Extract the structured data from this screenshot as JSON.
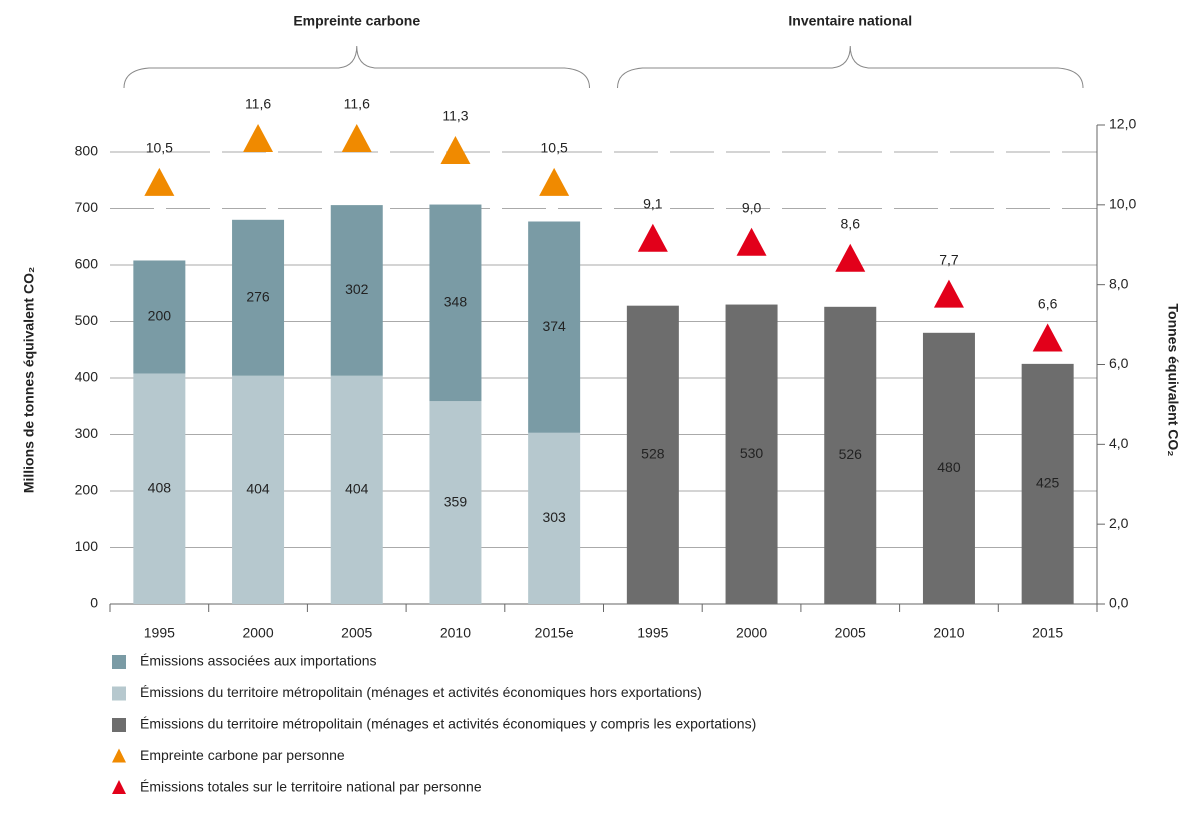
{
  "chart_data": {
    "type": "bar",
    "annotations": [
      "Empreinte carbone",
      "Inventaire national"
    ],
    "ylabel": "Millions de tonnes équivalent CO₂",
    "y2label": "Tonnes équivalent CO₂",
    "categories": [
      "1995",
      "2000",
      "2005",
      "2010",
      "2015e",
      "1995",
      "2000",
      "2005",
      "2010",
      "2015"
    ],
    "series": [
      {
        "name": "Émissions associées aux importations",
        "color": "#7a9ba5",
        "kind": "bar",
        "values": [
          200,
          276,
          302,
          348,
          374,
          null,
          null,
          null,
          null,
          null
        ]
      },
      {
        "name": "Émissions du territoire métropolitain (ménages et activités économiques hors exportations)",
        "color": "#b6c8ce",
        "kind": "bar",
        "values": [
          408,
          404,
          404,
          359,
          303,
          null,
          null,
          null,
          null,
          null
        ]
      },
      {
        "name": "Émissions du territoire métropolitain (ménages et activités économiques y compris les exportations)",
        "color": "#6d6d6d",
        "kind": "bar",
        "values": [
          null,
          null,
          null,
          null,
          null,
          528,
          530,
          526,
          480,
          425
        ]
      },
      {
        "name": "Empreinte carbone par personne",
        "color": "#f08a00",
        "kind": "triangle",
        "axis": "y2",
        "values": [
          10.5,
          11.6,
          11.6,
          11.3,
          10.5,
          null,
          null,
          null,
          null,
          null
        ],
        "value_labels": [
          "10,5",
          "11,6",
          "11,6",
          "11,3",
          "10,5",
          null,
          null,
          null,
          null,
          null
        ]
      },
      {
        "name": "Émissions totales sur le territoire national par personne",
        "color": "#e2001a",
        "kind": "triangle",
        "axis": "y2",
        "values": [
          null,
          null,
          null,
          null,
          null,
          9.1,
          9.0,
          8.6,
          7.7,
          6.6
        ],
        "value_labels": [
          null,
          null,
          null,
          null,
          null,
          "9,1",
          "9,0",
          "8,6",
          "7,7",
          "6,6"
        ]
      }
    ],
    "stacked": true,
    "ylim": [
      0,
      850
    ],
    "yticks": [
      0,
      100,
      200,
      300,
      400,
      500,
      600,
      700,
      800
    ],
    "y2lim": [
      0,
      12
    ],
    "y2ticks": [
      {
        "value": 0,
        "label": "0,0"
      },
      {
        "value": 2,
        "label": "2,0"
      },
      {
        "value": 4,
        "label": "4,0"
      },
      {
        "value": 6,
        "label": "6,0"
      },
      {
        "value": 8,
        "label": "8,0"
      },
      {
        "value": 10,
        "label": "10,0"
      },
      {
        "value": 12,
        "label": "12,0"
      }
    ],
    "grid": true
  }
}
